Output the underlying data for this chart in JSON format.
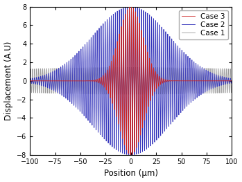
{
  "title": "",
  "xlabel": "Position (μm)",
  "ylabel": "Displacement (A.U)",
  "xlim": [
    -100,
    100
  ],
  "ylim": [
    -8,
    8
  ],
  "xticks": [
    -100,
    -75,
    -50,
    -25,
    0,
    25,
    50,
    75,
    100
  ],
  "yticks": [
    -8,
    -6,
    -4,
    -2,
    0,
    2,
    4,
    6,
    8
  ],
  "cases": [
    {
      "label": "Case 1",
      "color": "#999999",
      "amplitude": 1.45,
      "sigma": 200,
      "frequency": 0.5,
      "zorder": 1,
      "lw": 0.6
    },
    {
      "label": "Case 2",
      "color": "#3333bb",
      "amplitude": 8.0,
      "sigma": 38,
      "frequency": 0.5,
      "zorder": 2,
      "lw": 0.6
    },
    {
      "label": "Case 3",
      "color": "#cc2222",
      "amplitude": 8.0,
      "sigma": 12,
      "frequency": 0.5,
      "zorder": 3,
      "lw": 0.6
    }
  ],
  "legend_fontsize": 7.5,
  "legend_loc": "upper right",
  "background_color": "#ffffff",
  "tick_labelsize": 7,
  "xlabel_fontsize": 8.5,
  "ylabel_fontsize": 8.5
}
